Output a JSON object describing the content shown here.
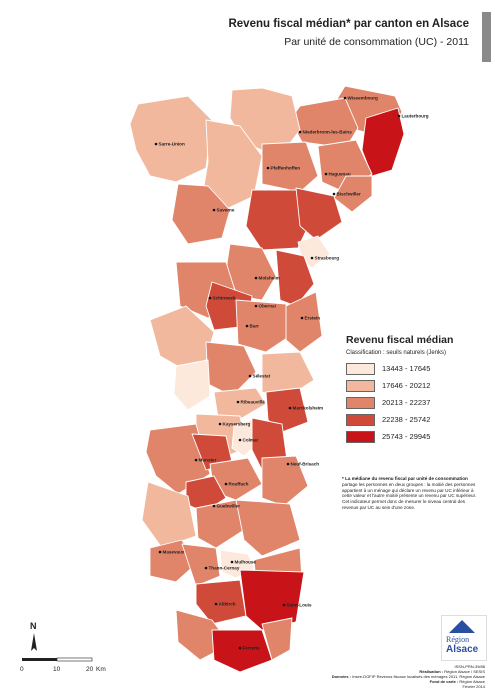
{
  "title": "Revenu fiscal médian* par canton en Alsace",
  "subtitle": "Par unité de consommation (UC) - 2011",
  "palette": {
    "c1": "#fde8dc",
    "c2": "#f2b89d",
    "c3": "#e0846a",
    "c4": "#d04a3a",
    "c5": "#c81418",
    "border": "#ffffff"
  },
  "legend": {
    "title": "Revenu fiscal médian",
    "subtitle": "Classification : seuils naturels (Jenks)",
    "classes": [
      {
        "label": "13443 - 17645",
        "color": "#fde8dc"
      },
      {
        "label": "17646 - 20212",
        "color": "#f2b89d"
      },
      {
        "label": "20213 - 22237",
        "color": "#e0846a"
      },
      {
        "label": "22238 - 25742",
        "color": "#d04a3a"
      },
      {
        "label": "25743 - 29945",
        "color": "#c81418"
      }
    ]
  },
  "cities": [
    {
      "name": "Wissembourg"
    },
    {
      "name": "Lauterbourg"
    },
    {
      "name": "Niederbronn-les-Bains"
    },
    {
      "name": "Sarre-Union"
    },
    {
      "name": "Pfaffenhoffen"
    },
    {
      "name": "Haguenau"
    },
    {
      "name": "Bischwiller"
    },
    {
      "name": "Saverne"
    },
    {
      "name": "Strasbourg"
    },
    {
      "name": "Molsheim"
    },
    {
      "name": "Schirmeck"
    },
    {
      "name": "Obernai"
    },
    {
      "name": "Erstein"
    },
    {
      "name": "Barr"
    },
    {
      "name": "Sélestat"
    },
    {
      "name": "Ribeauvillé"
    },
    {
      "name": "Marckolsheim"
    },
    {
      "name": "Kaysersberg"
    },
    {
      "name": "Colmar"
    },
    {
      "name": "Munster"
    },
    {
      "name": "Neuf-Brisach"
    },
    {
      "name": "Rouffach"
    },
    {
      "name": "Guebwiller"
    },
    {
      "name": "Thann-Cernay"
    },
    {
      "name": "Masevaux"
    },
    {
      "name": "Mulhouse"
    },
    {
      "name": "Altkirch"
    },
    {
      "name": "Saint-Louis"
    },
    {
      "name": "Ferrette"
    }
  ],
  "note": {
    "head": "* La médiane du revenu fiscal par unité de consommation",
    "body": "partage les personnes en deux groupes : la moitié des personnes appartient à un ménage qui déclare un revenu par UC inférieur à cette valeur et l'autre moitié présente un revenu par UC supérieur. Cet indicateur permet donc de mesurer le niveau central des revenus par UC au sein d'une zone."
  },
  "north_label": "N",
  "scale": {
    "ticks": [
      "0",
      "10",
      "20"
    ],
    "unit": "Km"
  },
  "logo": {
    "line1": "Région",
    "line2": "Alsace"
  },
  "credits": {
    "line1": "ISSN-PRN-39/88",
    "realisation_label": "Réalisation :",
    "realisation_value": "Région Alsace / SESIS",
    "donnees_label": "Données :",
    "donnees_value": "Insee-DGFIP Revenus fiscaux localisés des ménages 2011, Région Alsace",
    "fond_label": "Fond de carte :",
    "fond_value": "Région Alsace",
    "date": "Février 2014"
  }
}
